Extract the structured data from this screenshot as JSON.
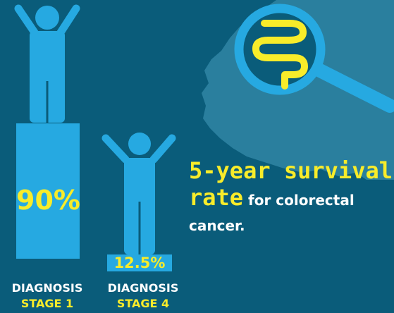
{
  "stats": {
    "stage1_percent": "90%",
    "stage4_percent": "12.5%",
    "stage1_value": 90,
    "stage4_value": 12.5
  },
  "labels": {
    "stage1_line1": "DIAGNOSIS",
    "stage1_line2": "STAGE 1",
    "stage4_line1": "DIAGNOSIS",
    "stage4_line2": "STAGE 4"
  },
  "headline": {
    "part1": "5-year survival",
    "part2": "rate",
    "part3": " for colorectal",
    "part4": "cancer."
  },
  "colors": {
    "background": "#0a5c7a",
    "accent_blue": "#26a9e1",
    "highlight_yellow": "#f8ec2a",
    "map_shape": "#2a7f9e"
  },
  "icons": {
    "magnifier": "magnifying-glass-icon",
    "intestine": "intestine-icon",
    "person_stage1": "person-arms-up-icon",
    "person_stage4": "person-arms-up-icon"
  }
}
